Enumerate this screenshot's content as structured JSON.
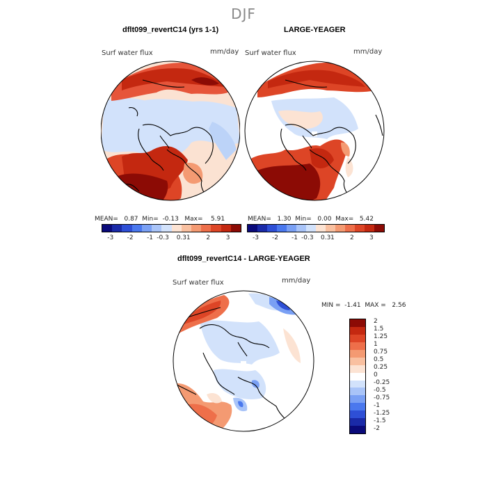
{
  "season": "DJF",
  "top_panels": [
    {
      "title": "dflt099_revertC14 (yrs 1-1)",
      "var_label": "Surf water flux",
      "units": "mm/day",
      "stats": {
        "mean_label": "MEAN=",
        "mean": "0.87",
        "min_label": "Min=",
        "min": "-0.13",
        "max_label": "Max=",
        "max": "5.91"
      }
    },
    {
      "title": "LARGE-YEAGER",
      "var_label": "Surf water flux",
      "units": "mm/day",
      "stats": {
        "mean_label": "MEAN=",
        "mean": "1.30",
        "min_label": "Min=",
        "min": "0.00",
        "max_label": "Max=",
        "max": "5.42"
      }
    }
  ],
  "top_colorbar": {
    "colors": [
      "#0a0a7a",
      "#1a2aa8",
      "#2e4fd6",
      "#4a78ee",
      "#7aa0f4",
      "#a9c4f8",
      "#d2e2fb",
      "#fce3d3",
      "#f9c0a0",
      "#f49a72",
      "#ee6f4a",
      "#dd4526",
      "#c42810",
      "#8c0b05"
    ],
    "tick_labels": [
      "-3",
      "-2",
      "-1",
      "-0.3",
      "0.3",
      "1",
      "2",
      "3"
    ]
  },
  "diff_panel": {
    "title": "dflt099_revertC14 - LARGE-YEAGER",
    "var_label": "Surf water flux",
    "units": "mm/day",
    "stats": {
      "min_label": "MIN =",
      "min": "-1.41",
      "max_label": "MAX =",
      "max": "2.56"
    }
  },
  "diff_colorbar": {
    "colors": [
      "#8c0b05",
      "#c42810",
      "#dd4526",
      "#ee6f4a",
      "#f49a72",
      "#f9c0a0",
      "#fce3d3",
      "#ffffff",
      "#d2e2fb",
      "#a9c4f8",
      "#7aa0f4",
      "#4a78ee",
      "#2e4fd6",
      "#1a2aa8",
      "#0a0a7a"
    ],
    "tick_labels": [
      "2",
      "1.5",
      "1.25",
      "1",
      "0.75",
      "0.5",
      "0.25",
      "0",
      "-0.25",
      "-0.5",
      "-0.75",
      "-1",
      "-1.25",
      "-1.5",
      "-2"
    ]
  }
}
